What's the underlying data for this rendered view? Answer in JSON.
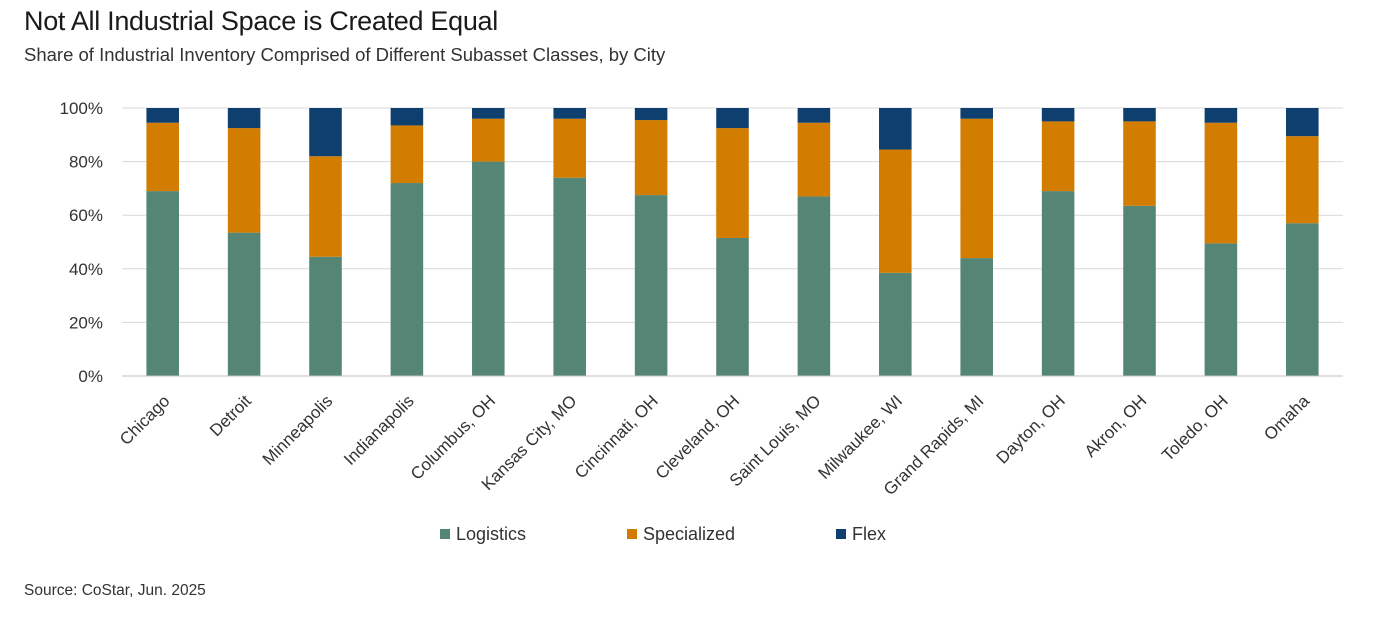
{
  "header": {
    "title": "Not All Industrial Space is Created Equal",
    "subtitle": "Share of Industrial Inventory Comprised of Different Subasset Classes, by City"
  },
  "footer": {
    "source": "Source: CoStar, Jun. 2025"
  },
  "chart_data": {
    "type": "bar",
    "stacked": true,
    "title": "Not All Industrial Space is Created Equal",
    "subtitle": "Share of Industrial Inventory Comprised of Different Subasset Classes, by City",
    "xlabel": "",
    "ylabel": "",
    "ylim": [
      0,
      100
    ],
    "yticks": [
      "0%",
      "20%",
      "40%",
      "60%",
      "80%",
      "100%"
    ],
    "grid": true,
    "legend_position": "bottom",
    "categories": [
      "Chicago",
      "Detroit",
      "Minneapolis",
      "Indianapolis",
      "Columbus, OH",
      "Kansas City, MO",
      "Cincinnati, OH",
      "Cleveland, OH",
      "Saint Louis, MO",
      "Milwaukee, WI",
      "Grand Rapids, MI",
      "Dayton, OH",
      "Akron, OH",
      "Toledo, OH",
      "Omaha"
    ],
    "series": [
      {
        "name": "Logistics",
        "color": "#558675",
        "values": [
          69,
          53.5,
          44.5,
          72,
          80,
          74,
          67.5,
          51.5,
          67,
          38.5,
          44,
          69,
          63.5,
          49.5,
          57
        ]
      },
      {
        "name": "Specialized",
        "color": "#D27C00",
        "values": [
          25.5,
          39,
          37.5,
          21.5,
          16,
          22,
          28,
          41,
          27.5,
          46,
          52,
          26,
          31.5,
          45,
          32.5
        ]
      },
      {
        "name": "Flex",
        "color": "#0F3F6F",
        "values": [
          5.5,
          7.5,
          18,
          6.5,
          4,
          4,
          4.5,
          7.5,
          5.5,
          15.5,
          4,
          5,
          5,
          5.5,
          10.5
        ]
      }
    ]
  }
}
